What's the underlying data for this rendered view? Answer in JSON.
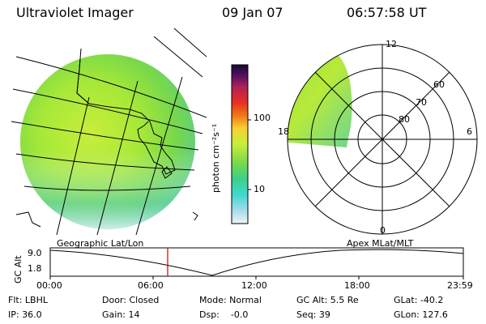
{
  "header": {
    "title": "Ultraviolet Imager",
    "date": "09 Jan 07",
    "time": "06:57:58 UT"
  },
  "colorbar": {
    "unit_label": "photon cm⁻²s⁻¹",
    "ticks": [
      "100",
      "10"
    ]
  },
  "polar_plot": {
    "mlt_labels": [
      "12",
      "18",
      "6",
      "0"
    ],
    "lat_labels": [
      "60",
      "70",
      "80"
    ]
  },
  "panel_labels": {
    "left": "Geographic Lat/Lon",
    "right": "Apex MLat/MLT"
  },
  "altitude_plot": {
    "ylabel": "GC Alt",
    "yticks": [
      "9.0",
      "1.8"
    ],
    "xticks": [
      "00:00",
      "06:00",
      "12:00",
      "18:00",
      "23:59"
    ]
  },
  "status": {
    "flt": "Flt: LBHL",
    "ip": "IP: 36.0",
    "door": "Door: Closed",
    "gain": "Gain: 14",
    "mode": "Mode: Normal",
    "dsp": "Dsp:    -0.0",
    "gcalt": "GC Alt: 5.5 Re",
    "seq": "Seq: 39",
    "glat": "GLat: -40.2",
    "glon": "GLon: 127.6"
  },
  "colors": {
    "marker": "#cc0000",
    "image_green": "#7ee033"
  }
}
